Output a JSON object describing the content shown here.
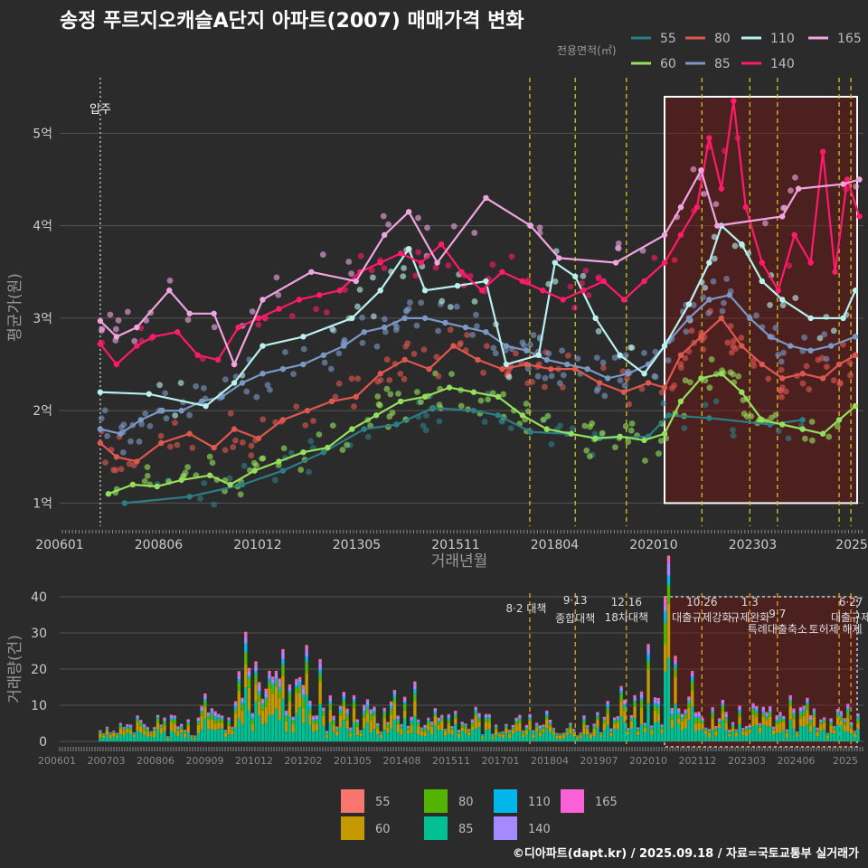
{
  "title": "송정 푸르지오캐슬A단지 아파트(2007) 매매가격 변화",
  "footer": "©디아파트(dapt.kr) / 2025.09.18 / 자료=국토교통부 실거래가",
  "legend_top": {
    "title": "전용면적(㎡)",
    "items": [
      {
        "label": "55",
        "color": "#2a7f86"
      },
      {
        "label": "80",
        "color": "#e0574f"
      },
      {
        "label": "110",
        "color": "#b9f1ee"
      },
      {
        "label": "165",
        "color": "#f0a5e0"
      },
      {
        "label": "60",
        "color": "#94e05c"
      },
      {
        "label": "85",
        "color": "#7b98c4"
      },
      {
        "label": "140",
        "color": "#ff1a6a"
      }
    ]
  },
  "legend_bottom": {
    "items": [
      {
        "label": "55",
        "color": "#f8766d"
      },
      {
        "label": "80",
        "color": "#53b400"
      },
      {
        "label": "110",
        "color": "#00b6eb"
      },
      {
        "label": "165",
        "color": "#fb61d7"
      },
      {
        "label": "60",
        "color": "#c49a00"
      },
      {
        "label": "85",
        "color": "#00c094"
      },
      {
        "label": "140",
        "color": "#a58aff"
      }
    ]
  },
  "chart_data": [
    {
      "type": "line",
      "title": "송정 푸르지오캐슬A단지 아파트(2007) 매매가격 변화",
      "xlabel": "거래년월",
      "ylabel": "평균가(원)",
      "x_ticks": [
        "200601",
        "200806",
        "201012",
        "201305",
        "201511",
        "201804",
        "202010",
        "202303",
        "2025"
      ],
      "y_ticks": [
        "1억",
        "2억",
        "3억",
        "4억",
        "5억"
      ],
      "ylim": [
        0.75,
        5.6
      ],
      "xlim": [
        2006.0,
        2025.8
      ],
      "grid": true,
      "legend_position": "top-right",
      "event_line_label": "입주",
      "event_line_x": 2007.0,
      "highlight_range": [
        2020.9,
        2025.9
      ],
      "series": [
        {
          "name": "55",
          "color": "#2a7f86",
          "points": [
            [
              2007.6,
              1.0
            ],
            [
              2009.2,
              1.07
            ],
            [
              2010.5,
              1.2
            ],
            [
              2011.5,
              1.35
            ],
            [
              2012.5,
              1.55
            ],
            [
              2013.5,
              1.8
            ],
            [
              2014.3,
              1.85
            ],
            [
              2015.2,
              2.03
            ],
            [
              2016.2,
              2.0
            ],
            [
              2016.8,
              1.95
            ],
            [
              2017.6,
              1.77
            ],
            [
              2018.5,
              1.75
            ],
            [
              2019.3,
              1.7
            ],
            [
              2020.5,
              1.72
            ],
            [
              2021.0,
              1.95
            ],
            [
              2022.0,
              1.92
            ],
            [
              2023.5,
              1.85
            ],
            [
              2024.3,
              1.9
            ]
          ]
        },
        {
          "name": "60",
          "color": "#94e05c",
          "points": [
            [
              2007.2,
              1.1
            ],
            [
              2007.8,
              1.2
            ],
            [
              2008.4,
              1.18
            ],
            [
              2009.0,
              1.25
            ],
            [
              2009.7,
              1.3
            ],
            [
              2010.2,
              1.2
            ],
            [
              2010.8,
              1.35
            ],
            [
              2011.4,
              1.45
            ],
            [
              2012.0,
              1.55
            ],
            [
              2012.6,
              1.6
            ],
            [
              2013.2,
              1.8
            ],
            [
              2013.8,
              1.95
            ],
            [
              2014.4,
              2.1
            ],
            [
              2015.0,
              2.15
            ],
            [
              2015.6,
              2.25
            ],
            [
              2016.2,
              2.2
            ],
            [
              2016.8,
              2.15
            ],
            [
              2017.4,
              1.95
            ],
            [
              2018.0,
              1.8
            ],
            [
              2018.6,
              1.75
            ],
            [
              2019.2,
              1.7
            ],
            [
              2019.8,
              1.72
            ],
            [
              2020.4,
              1.68
            ],
            [
              2020.9,
              1.75
            ],
            [
              2021.3,
              2.1
            ],
            [
              2021.8,
              2.35
            ],
            [
              2022.3,
              2.4
            ],
            [
              2022.8,
              2.2
            ],
            [
              2023.3,
              1.9
            ],
            [
              2023.8,
              1.85
            ],
            [
              2024.3,
              1.8
            ],
            [
              2024.8,
              1.75
            ],
            [
              2025.2,
              1.9
            ],
            [
              2025.6,
              2.05
            ]
          ]
        },
        {
          "name": "80",
          "color": "#e0574f",
          "points": [
            [
              2007.0,
              1.65
            ],
            [
              2007.4,
              1.5
            ],
            [
              2007.9,
              1.45
            ],
            [
              2008.5,
              1.65
            ],
            [
              2009.2,
              1.75
            ],
            [
              2009.8,
              1.6
            ],
            [
              2010.3,
              1.8
            ],
            [
              2010.9,
              1.7
            ],
            [
              2011.5,
              1.9
            ],
            [
              2012.1,
              2.0
            ],
            [
              2012.7,
              2.1
            ],
            [
              2013.3,
              2.15
            ],
            [
              2013.9,
              2.4
            ],
            [
              2014.5,
              2.55
            ],
            [
              2015.1,
              2.45
            ],
            [
              2015.7,
              2.7
            ],
            [
              2016.3,
              2.55
            ],
            [
              2016.9,
              2.45
            ],
            [
              2017.5,
              2.5
            ],
            [
              2018.1,
              2.45
            ],
            [
              2018.7,
              2.45
            ],
            [
              2019.3,
              2.3
            ],
            [
              2019.9,
              2.2
            ],
            [
              2020.5,
              2.3
            ],
            [
              2020.9,
              2.25
            ],
            [
              2021.3,
              2.6
            ],
            [
              2021.8,
              2.8
            ],
            [
              2022.3,
              3.0
            ],
            [
              2022.8,
              2.7
            ],
            [
              2023.3,
              2.5
            ],
            [
              2023.8,
              2.35
            ],
            [
              2024.3,
              2.4
            ],
            [
              2024.8,
              2.35
            ],
            [
              2025.2,
              2.5
            ],
            [
              2025.6,
              2.6
            ]
          ]
        },
        {
          "name": "85",
          "color": "#7b98c4",
          "points": [
            [
              2007.0,
              1.8
            ],
            [
              2007.5,
              1.75
            ],
            [
              2008.0,
              1.9
            ],
            [
              2008.5,
              2.0
            ],
            [
              2009.0,
              2.0
            ],
            [
              2009.5,
              2.1
            ],
            [
              2010.0,
              2.15
            ],
            [
              2010.5,
              2.3
            ],
            [
              2011.0,
              2.4
            ],
            [
              2011.5,
              2.45
            ],
            [
              2012.0,
              2.5
            ],
            [
              2012.5,
              2.6
            ],
            [
              2013.0,
              2.7
            ],
            [
              2013.5,
              2.85
            ],
            [
              2014.0,
              2.9
            ],
            [
              2014.5,
              3.0
            ],
            [
              2015.0,
              3.0
            ],
            [
              2015.5,
              2.95
            ],
            [
              2016.0,
              2.9
            ],
            [
              2016.5,
              2.85
            ],
            [
              2017.0,
              2.7
            ],
            [
              2017.5,
              2.65
            ],
            [
              2018.0,
              2.55
            ],
            [
              2018.5,
              2.5
            ],
            [
              2019.0,
              2.45
            ],
            [
              2019.5,
              2.35
            ],
            [
              2020.0,
              2.4
            ],
            [
              2020.5,
              2.5
            ],
            [
              2021.0,
              2.75
            ],
            [
              2021.5,
              3.0
            ],
            [
              2022.0,
              3.2
            ],
            [
              2022.5,
              3.25
            ],
            [
              2023.0,
              3.0
            ],
            [
              2023.5,
              2.8
            ],
            [
              2024.0,
              2.7
            ],
            [
              2024.5,
              2.65
            ],
            [
              2025.0,
              2.7
            ],
            [
              2025.6,
              2.8
            ]
          ]
        },
        {
          "name": "110",
          "color": "#b9f1ee",
          "points": [
            [
              2007.0,
              2.2
            ],
            [
              2008.2,
              2.18
            ],
            [
              2009.6,
              2.05
            ],
            [
              2010.3,
              2.3
            ],
            [
              2011.0,
              2.7
            ],
            [
              2012.0,
              2.8
            ],
            [
              2013.2,
              3.0
            ],
            [
              2013.9,
              3.3
            ],
            [
              2014.6,
              3.75
            ],
            [
              2015.0,
              3.3
            ],
            [
              2015.8,
              3.35
            ],
            [
              2016.5,
              3.4
            ],
            [
              2017.0,
              2.5
            ],
            [
              2017.8,
              2.6
            ],
            [
              2018.2,
              3.6
            ],
            [
              2018.7,
              3.45
            ],
            [
              2019.2,
              3.0
            ],
            [
              2019.8,
              2.6
            ],
            [
              2020.4,
              2.4
            ],
            [
              2020.9,
              2.7
            ],
            [
              2021.5,
              3.15
            ],
            [
              2022.0,
              3.6
            ],
            [
              2022.3,
              4.0
            ],
            [
              2022.8,
              3.8
            ],
            [
              2023.3,
              3.4
            ],
            [
              2023.8,
              3.2
            ],
            [
              2024.5,
              3.0
            ],
            [
              2025.3,
              3.0
            ],
            [
              2025.6,
              3.3
            ]
          ]
        },
        {
          "name": "140",
          "color": "#ff1a6a",
          "points": [
            [
              2007.0,
              2.72
            ],
            [
              2007.4,
              2.5
            ],
            [
              2007.9,
              2.7
            ],
            [
              2008.3,
              2.8
            ],
            [
              2008.9,
              2.85
            ],
            [
              2009.4,
              2.6
            ],
            [
              2009.9,
              2.55
            ],
            [
              2010.4,
              2.9
            ],
            [
              2010.9,
              3.0
            ],
            [
              2011.4,
              3.1
            ],
            [
              2011.9,
              3.2
            ],
            [
              2012.4,
              3.25
            ],
            [
              2012.9,
              3.3
            ],
            [
              2013.4,
              3.5
            ],
            [
              2013.9,
              3.6
            ],
            [
              2014.4,
              3.7
            ],
            [
              2014.9,
              3.6
            ],
            [
              2015.4,
              3.8
            ],
            [
              2015.9,
              3.5
            ],
            [
              2016.4,
              3.3
            ],
            [
              2016.9,
              3.5
            ],
            [
              2017.4,
              3.4
            ],
            [
              2017.9,
              3.3
            ],
            [
              2018.4,
              3.2
            ],
            [
              2018.9,
              3.3
            ],
            [
              2019.4,
              3.4
            ],
            [
              2019.9,
              3.2
            ],
            [
              2020.4,
              3.4
            ],
            [
              2020.9,
              3.6
            ],
            [
              2021.3,
              3.9
            ],
            [
              2021.7,
              4.2
            ],
            [
              2022.0,
              4.95
            ],
            [
              2022.3,
              4.4
            ],
            [
              2022.6,
              5.35
            ],
            [
              2022.9,
              4.2
            ],
            [
              2023.3,
              3.6
            ],
            [
              2023.7,
              3.3
            ],
            [
              2024.1,
              3.9
            ],
            [
              2024.5,
              3.6
            ],
            [
              2024.8,
              4.8
            ],
            [
              2025.1,
              3.5
            ],
            [
              2025.4,
              4.5
            ],
            [
              2025.7,
              4.1
            ]
          ]
        },
        {
          "name": "165",
          "color": "#f0a5e0",
          "points": [
            [
              2007.0,
              2.97
            ],
            [
              2007.4,
              2.8
            ],
            [
              2007.9,
              2.9
            ],
            [
              2008.7,
              3.3
            ],
            [
              2009.2,
              3.05
            ],
            [
              2009.8,
              3.05
            ],
            [
              2010.3,
              2.5
            ],
            [
              2011.0,
              3.2
            ],
            [
              2012.2,
              3.5
            ],
            [
              2013.3,
              3.4
            ],
            [
              2014.0,
              3.9
            ],
            [
              2014.6,
              4.15
            ],
            [
              2015.3,
              3.6
            ],
            [
              2016.5,
              4.3
            ],
            [
              2017.6,
              4.0
            ],
            [
              2018.3,
              3.65
            ],
            [
              2019.7,
              3.6
            ],
            [
              2020.9,
              3.9
            ],
            [
              2021.3,
              4.2
            ],
            [
              2021.8,
              4.6
            ],
            [
              2022.2,
              4.0
            ],
            [
              2023.8,
              4.1
            ],
            [
              2024.2,
              4.4
            ],
            [
              2025.3,
              4.45
            ],
            [
              2025.7,
              4.5
            ]
          ]
        }
      ]
    },
    {
      "type": "bar",
      "stacked": true,
      "ylabel": "거래량(건)",
      "x_ticks": [
        "200601",
        "200703",
        "200806",
        "200909",
        "201012",
        "201202",
        "201305",
        "201408",
        "201511",
        "201701",
        "201804",
        "201907",
        "202010",
        "202112",
        "202303",
        "202406",
        "2025"
      ],
      "y_ticks": [
        "0",
        "10",
        "20",
        "30",
        "40"
      ],
      "ylim": [
        0,
        41
      ],
      "xlim": [
        2006.0,
        2025.8
      ],
      "grid": true,
      "legend_position": "bottom",
      "highlight_range": [
        2020.9,
        2025.9
      ],
      "policy_events": [
        {
          "x": 2017.58,
          "date": "8·2",
          "label": "대책"
        },
        {
          "x": 2018.7,
          "date": "9·13",
          "label": "종합대책"
        },
        {
          "x": 2019.96,
          "date": "12·16",
          "label": "18차대책"
        },
        {
          "x": 2021.82,
          "date": "10·26",
          "label": "대출규제강화"
        },
        {
          "x": 2023.0,
          "date": "1·3",
          "label": "규제완화"
        },
        {
          "x": 2023.68,
          "date": "9·7",
          "label": "특례대출축소"
        },
        {
          "x": 2025.49,
          "date": "6·27",
          "label": "대출규제"
        },
        {
          "x": 2025.2,
          "date": "",
          "label": "토허제 해제"
        }
      ],
      "totals_peaks": [
        [
          2010.6,
          32
        ],
        [
          2012.1,
          26
        ],
        [
          2020.95,
          40
        ],
        [
          2020.5,
          25
        ]
      ]
    }
  ]
}
